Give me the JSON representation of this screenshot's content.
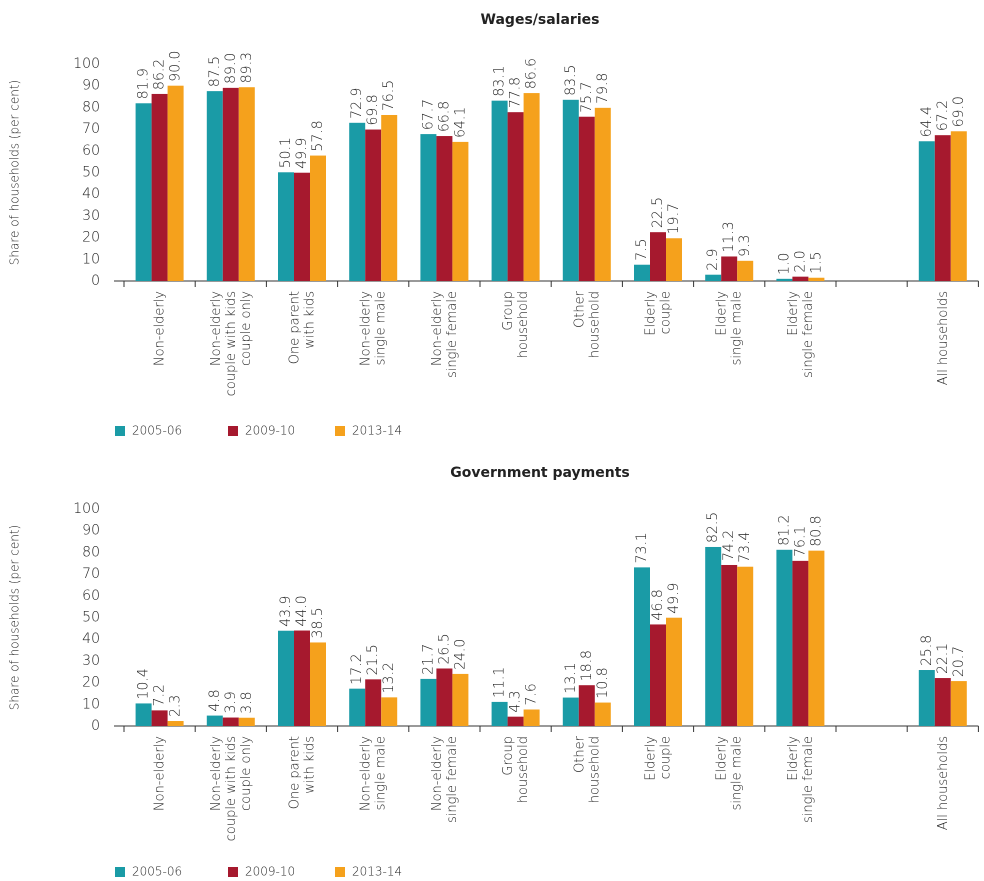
{
  "chart_data": [
    {
      "type": "bar",
      "title": "Wages/salaries",
      "y_label": "Share of households (per cent)",
      "categories": [
        "Non-elderly",
        "Non-elderly\ncouple with kids\ncouple only",
        "One parent\nwith kids",
        "Non-elderly\nsingle male",
        "Non-elderly\nsingle female",
        "Group\nhousehold",
        "Other\nhousehold",
        "Elderly\ncouple",
        "Elderly\nsingle male",
        "Elderly\nsingle female",
        null,
        "All households"
      ],
      "series": [
        {
          "name": "2005-06",
          "color": "#1a9ba6",
          "values": [
            81.9,
            87.5,
            50.1,
            72.9,
            67.7,
            83.1,
            83.5,
            7.5,
            2.9,
            1.0,
            null,
            64.4
          ],
          "value_labels": [
            "81.9",
            "87.5",
            "50.1",
            "72.9",
            "67.7",
            "83.1",
            "83.5",
            "7.5",
            "2.9",
            "1.0",
            null,
            "64.4"
          ]
        },
        {
          "name": "2009-10",
          "color": "#a6192e",
          "values": [
            86.2,
            89.0,
            49.9,
            69.8,
            66.8,
            77.8,
            75.7,
            22.5,
            11.3,
            2.0,
            null,
            67.2
          ],
          "value_labels": [
            "86.2",
            "89.0",
            "49.9",
            "69.8",
            "66.8",
            "77.8",
            "75.7",
            "22.5",
            "11.3",
            "2.0",
            null,
            "67.2"
          ]
        },
        {
          "name": "2013-14",
          "color": "#f5a11c",
          "values": [
            90.0,
            89.3,
            57.8,
            76.5,
            64.1,
            86.6,
            79.8,
            19.7,
            9.3,
            1.5,
            null,
            69.0
          ],
          "value_labels": [
            "90.0",
            "89.3",
            "57.8",
            "76.5",
            "64.1",
            "86.6",
            "79.8",
            "19.7",
            "9.3",
            "1.5",
            null,
            "69.0"
          ]
        }
      ],
      "ylim": [
        0,
        100
      ],
      "yticks": [
        0,
        10,
        20,
        30,
        40,
        50,
        60,
        70,
        80,
        90,
        100
      ],
      "legend": "bottom-left"
    },
    {
      "type": "bar",
      "title": "Government payments",
      "y_label": "Share of households (per cent)",
      "categories": [
        "Non-elderly",
        "Non-elderly\ncouple with kids\ncouple only",
        "One parent\nwith kids",
        "Non-elderly\nsingle male",
        "Non-elderly\nsingle female",
        "Group\nhousehold",
        "Other\nhousehold",
        "Elderly\ncouple",
        "Elderly\nsingle male",
        "Elderly\nsingle female",
        null,
        "All households"
      ],
      "series": [
        {
          "name": "2005-06",
          "color": "#1a9ba6",
          "values": [
            10.4,
            4.8,
            43.9,
            17.2,
            21.7,
            11.1,
            13.1,
            73.1,
            82.5,
            81.2,
            null,
            25.8
          ],
          "value_labels": [
            "10.4",
            "4.8",
            "43.9",
            "17.2",
            "21.7",
            "11.1",
            "13.1",
            "73.1",
            "82.5",
            "81.2",
            null,
            "25.8"
          ]
        },
        {
          "name": "2009-10",
          "color": "#a6192e",
          "values": [
            7.2,
            3.9,
            44.0,
            21.5,
            26.5,
            4.3,
            18.8,
            46.8,
            74.2,
            76.1,
            null,
            22.1
          ],
          "value_labels": [
            "7.2",
            "3.9",
            "44.0",
            "21.5",
            "26.5",
            "4.3",
            "18.8",
            "46.8",
            "74.2",
            "76.1",
            null,
            "22.1"
          ]
        },
        {
          "name": "2013-14",
          "color": "#f5a11c",
          "values": [
            2.3,
            3.8,
            38.5,
            13.2,
            24.0,
            7.6,
            10.8,
            49.9,
            73.4,
            80.8,
            null,
            20.7
          ],
          "value_labels": [
            "2.3",
            "3.8",
            "38.5",
            "13.2",
            "24.0",
            "7.6",
            "10.8",
            "49.9",
            "73.4",
            "80.8",
            null,
            "20.7"
          ]
        }
      ],
      "ylim": [
        0,
        100
      ],
      "yticks": [
        0,
        10,
        20,
        30,
        40,
        50,
        60,
        70,
        80,
        90,
        100
      ],
      "legend": "bottom-left"
    }
  ]
}
